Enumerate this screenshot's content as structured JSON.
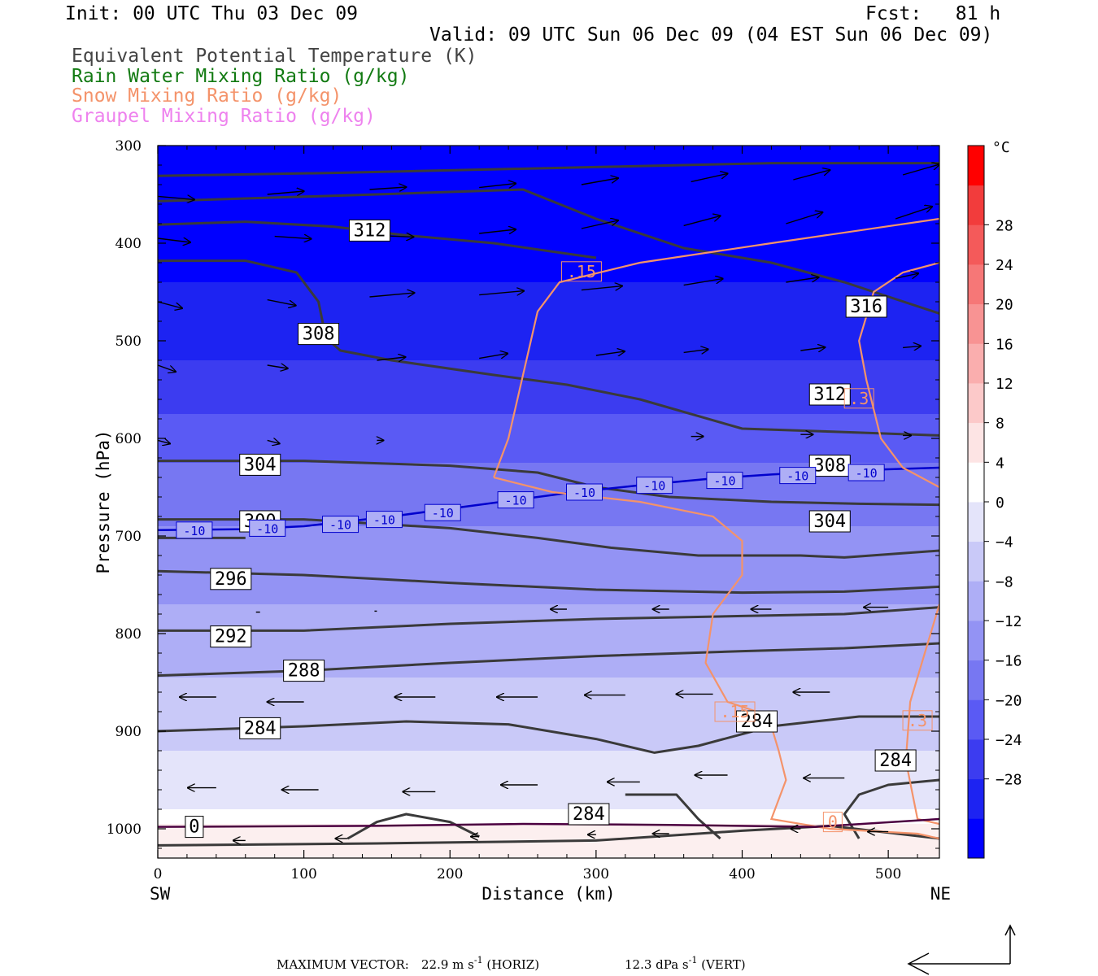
{
  "header": {
    "init": "Init: 00 UTC Thu 03 Dec 09",
    "fcst": "Fcst:   81 h",
    "valid": "Valid: 09 UTC Sun 06 Dec 09 (04 EST Sun 06 Dec 09)",
    "fields": [
      {
        "text": "Equivalent Potential Temperature (K)",
        "color": "#444444"
      },
      {
        "text": "Rain Water Mixing Ratio (g/kg)",
        "color": "#127a12"
      },
      {
        "text": "Snow Mixing Ratio (g/kg)",
        "color": "#f4936a"
      },
      {
        "text": "Graupel Mixing Ratio (g/kg)",
        "color": "#ee82ee"
      }
    ]
  },
  "chart_data": {
    "type": "cross-section contour",
    "xlabel": "Distance (km)",
    "ylabel": "Pressure (hPa)",
    "xlim": [
      0,
      535
    ],
    "ylim": [
      1030,
      300
    ],
    "x_ticks": [
      0,
      100,
      200,
      300,
      400,
      500
    ],
    "y_ticks": [
      300,
      400,
      500,
      600,
      700,
      800,
      900,
      1000
    ],
    "x_end_labels": {
      "left": "SW",
      "right": "NE"
    },
    "theta_e_contours": [
      {
        "level": 312,
        "points": [
          [
            0,
            381
          ],
          [
            60,
            378
          ],
          [
            120,
            383
          ],
          [
            170,
            392
          ],
          [
            230,
            400
          ],
          [
            300,
            415
          ]
        ]
      },
      {
        "level": 316,
        "points": [
          [
            0,
            331
          ],
          [
            120,
            328
          ],
          [
            300,
            322
          ],
          [
            420,
            318
          ],
          [
            535,
            318
          ]
        ]
      },
      {
        "level": 316,
        "points": [
          [
            0,
            357
          ],
          [
            150,
            350
          ],
          [
            250,
            345
          ],
          [
            300,
            375
          ],
          [
            360,
            405
          ],
          [
            420,
            420
          ],
          [
            470,
            440
          ],
          [
            535,
            472
          ]
        ]
      },
      {
        "level": 312,
        "points": [
          [
            0,
            418
          ],
          [
            60,
            418
          ],
          [
            95,
            430
          ],
          [
            110,
            460
          ],
          [
            115,
            497
          ],
          [
            125,
            510
          ],
          [
            160,
            520
          ],
          [
            230,
            535
          ],
          [
            280,
            545
          ],
          [
            330,
            560
          ],
          [
            400,
            590
          ],
          [
            460,
            593
          ],
          [
            535,
            597
          ]
        ]
      },
      {
        "level": 308,
        "points": [
          [
            0,
            623
          ],
          [
            100,
            623
          ],
          [
            200,
            628
          ],
          [
            260,
            635
          ],
          [
            300,
            650
          ],
          [
            350,
            660
          ],
          [
            420,
            665
          ],
          [
            480,
            667
          ],
          [
            535,
            668
          ]
        ]
      },
      {
        "level": 304,
        "points": [
          [
            0,
            683
          ],
          [
            100,
            683
          ],
          [
            200,
            692
          ],
          [
            260,
            702
          ],
          [
            310,
            712
          ],
          [
            370,
            720
          ],
          [
            440,
            720
          ],
          [
            470,
            722
          ],
          [
            535,
            715
          ]
        ]
      },
      {
        "level": 300,
        "points": [
          [
            0,
            702
          ],
          [
            60,
            702
          ]
        ]
      },
      {
        "level": 296,
        "points": [
          [
            0,
            736
          ],
          [
            100,
            740
          ],
          [
            200,
            748
          ],
          [
            300,
            755
          ],
          [
            400,
            758
          ],
          [
            470,
            757
          ],
          [
            535,
            752
          ]
        ]
      },
      {
        "level": 292,
        "points": [
          [
            0,
            797
          ],
          [
            100,
            797
          ],
          [
            200,
            790
          ],
          [
            300,
            785
          ],
          [
            400,
            782
          ],
          [
            470,
            780
          ],
          [
            535,
            773
          ]
        ]
      },
      {
        "level": 288,
        "points": [
          [
            0,
            843
          ],
          [
            100,
            838
          ],
          [
            200,
            830
          ],
          [
            300,
            823
          ],
          [
            400,
            818
          ],
          [
            470,
            815
          ],
          [
            535,
            810
          ]
        ]
      },
      {
        "level": 284,
        "points": [
          [
            0,
            900
          ],
          [
            100,
            895
          ],
          [
            170,
            890
          ],
          [
            240,
            893
          ],
          [
            300,
            908
          ],
          [
            340,
            922
          ],
          [
            370,
            915
          ],
          [
            420,
            895
          ],
          [
            480,
            885
          ],
          [
            535,
            885
          ]
        ]
      },
      {
        "level": 284,
        "points": [
          [
            130,
            1010
          ],
          [
            150,
            993
          ],
          [
            170,
            985
          ],
          [
            200,
            993
          ],
          [
            220,
            1008
          ]
        ]
      },
      {
        "level": 284,
        "points": [
          [
            320,
            965
          ],
          [
            355,
            965
          ],
          [
            370,
            990
          ],
          [
            385,
            1010
          ]
        ]
      },
      {
        "level": 284,
        "points": [
          [
            480,
            1010
          ],
          [
            470,
            985
          ],
          [
            480,
            965
          ],
          [
            500,
            955
          ],
          [
            535,
            950
          ]
        ]
      },
      {
        "level": 284,
        "points": [
          [
            0,
            1017
          ],
          [
            150,
            1015
          ],
          [
            300,
            1012
          ],
          [
            400,
            1002
          ],
          [
            460,
            997
          ],
          [
            535,
            1010
          ]
        ]
      }
    ],
    "temperature_contour": {
      "level": -10,
      "color": "#0000cd",
      "points": [
        [
          0,
          694
        ],
        [
          60,
          693
        ],
        [
          100,
          690
        ],
        [
          160,
          680
        ],
        [
          220,
          668
        ],
        [
          280,
          656
        ],
        [
          330,
          648
        ],
        [
          380,
          641
        ],
        [
          420,
          637
        ],
        [
          470,
          633
        ],
        [
          535,
          630
        ]
      ]
    },
    "snow_mixing_ratio_contours": [
      {
        "level": 0.15,
        "points": [
          [
            535,
            375
          ],
          [
            420,
            400
          ],
          [
            330,
            420
          ],
          [
            275,
            440
          ],
          [
            260,
            470
          ],
          [
            240,
            600
          ],
          [
            230,
            640
          ]
        ]
      },
      {
        "level": 0.15,
        "points": [
          [
            230,
            640
          ],
          [
            270,
            655
          ],
          [
            330,
            665
          ],
          [
            380,
            680
          ],
          [
            400,
            705
          ],
          [
            400,
            740
          ],
          [
            380,
            780
          ],
          [
            375,
            830
          ],
          [
            390,
            870
          ],
          [
            410,
            880
          ],
          [
            420,
            895
          ]
        ]
      },
      {
        "level": 0.3,
        "points": [
          [
            535,
            420
          ],
          [
            510,
            430
          ],
          [
            490,
            450
          ],
          [
            480,
            500
          ],
          [
            485,
            540
          ],
          [
            495,
            600
          ],
          [
            510,
            630
          ],
          [
            535,
            650
          ]
        ]
      },
      {
        "level": 0.15,
        "points": [
          [
            420,
            895
          ],
          [
            425,
            920
          ],
          [
            430,
            950
          ],
          [
            420,
            990
          ],
          [
            460,
            1000
          ],
          [
            520,
            1005
          ],
          [
            535,
            1010
          ]
        ]
      },
      {
        "level": 0.3,
        "points": [
          [
            535,
            770
          ],
          [
            525,
            820
          ],
          [
            515,
            870
          ],
          [
            512,
            930
          ],
          [
            520,
            990
          ],
          [
            535,
            995
          ]
        ]
      }
    ],
    "contour_labels": [
      {
        "text": "312",
        "x": 145,
        "p": 387
      },
      {
        "text": "308",
        "x": 110,
        "p": 493
      },
      {
        "text": "316",
        "x": 485,
        "p": 465
      },
      {
        "text": "312",
        "x": 460,
        "p": 555
      },
      {
        "text": "304",
        "x": 70,
        "p": 627
      },
      {
        "text": "308",
        "x": 460,
        "p": 628
      },
      {
        "text": "300",
        "x": 70,
        "p": 685
      },
      {
        "text": "304",
        "x": 460,
        "p": 685
      },
      {
        "text": "296",
        "x": 50,
        "p": 744
      },
      {
        "text": "292",
        "x": 50,
        "p": 803
      },
      {
        "text": "288",
        "x": 100,
        "p": 838
      },
      {
        "text": "284",
        "x": 70,
        "p": 897
      },
      {
        "text": "284",
        "x": 410,
        "p": 890
      },
      {
        "text": "284",
        "x": 505,
        "p": 930
      },
      {
        "text": "284",
        "x": 295,
        "p": 985
      },
      {
        "text": "0",
        "x": 25,
        "p": 998
      }
    ],
    "temperature_labels": [
      {
        "text": "-10",
        "x": 25,
        "p": 694
      },
      {
        "text": "-10",
        "x": 75,
        "p": 692
      },
      {
        "text": "-10",
        "x": 125,
        "p": 688
      },
      {
        "text": "-10",
        "x": 155,
        "p": 683
      },
      {
        "text": "-10",
        "x": 195,
        "p": 676
      },
      {
        "text": "-10",
        "x": 245,
        "p": 663
      },
      {
        "text": "-10",
        "x": 292,
        "p": 655
      },
      {
        "text": "-10",
        "x": 340,
        "p": 648
      },
      {
        "text": "-10",
        "x": 388,
        "p": 643
      },
      {
        "text": "-10",
        "x": 438,
        "p": 638
      },
      {
        "text": "-10",
        "x": 485,
        "p": 635
      }
    ],
    "snow_labels": [
      {
        "text": ".15",
        "x": 290,
        "p": 429
      },
      {
        "text": ".3",
        "x": 480,
        "p": 559
      },
      {
        "text": ".15",
        "x": 395,
        "p": 880
      },
      {
        "text": ".3",
        "x": 520,
        "p": 889
      },
      {
        "text": "0",
        "x": 462,
        "p": 993
      }
    ],
    "wind_vectors": [
      [
        0,
        352,
        45,
        4
      ],
      [
        75,
        350,
        45,
        -4
      ],
      [
        145,
        345,
        45,
        -3
      ],
      [
        220,
        343,
        45,
        -5
      ],
      [
        290,
        340,
        45,
        -8
      ],
      [
        365,
        337,
        45,
        -10
      ],
      [
        435,
        335,
        45,
        -12
      ],
      [
        510,
        330,
        45,
        -13
      ],
      [
        0,
        395,
        40,
        5
      ],
      [
        80,
        393,
        45,
        3
      ],
      [
        150,
        392,
        45,
        2
      ],
      [
        220,
        390,
        45,
        -5
      ],
      [
        290,
        385,
        45,
        -10
      ],
      [
        360,
        382,
        45,
        -12
      ],
      [
        430,
        380,
        45,
        -14
      ],
      [
        505,
        375,
        45,
        -15
      ],
      [
        0,
        460,
        30,
        8
      ],
      [
        75,
        458,
        35,
        7
      ],
      [
        145,
        455,
        55,
        -5
      ],
      [
        220,
        453,
        55,
        -5
      ],
      [
        290,
        448,
        50,
        -5
      ],
      [
        360,
        443,
        48,
        -8
      ],
      [
        430,
        440,
        40,
        -6
      ],
      [
        505,
        436,
        28,
        -6
      ],
      [
        0,
        525,
        22,
        8
      ],
      [
        75,
        525,
        25,
        4
      ],
      [
        150,
        520,
        35,
        -4
      ],
      [
        220,
        518,
        35,
        -6
      ],
      [
        300,
        515,
        35,
        -5
      ],
      [
        360,
        512,
        30,
        -4
      ],
      [
        440,
        510,
        30,
        -4
      ],
      [
        510,
        507,
        22,
        -2
      ],
      [
        0,
        602,
        15,
        4
      ],
      [
        75,
        602,
        15,
        4
      ],
      [
        150,
        602,
        8,
        0
      ],
      [
        365,
        598,
        15,
        0
      ],
      [
        440,
        596,
        15,
        0
      ],
      [
        510,
        597,
        10,
        0
      ],
      [
        70,
        778,
        -5,
        0
      ],
      [
        150,
        777,
        -3,
        0
      ],
      [
        280,
        775,
        -20,
        0
      ],
      [
        350,
        775,
        -20,
        0
      ],
      [
        420,
        775,
        -25,
        0
      ],
      [
        500,
        773,
        -30,
        0
      ],
      [
        40,
        865,
        -45,
        0
      ],
      [
        100,
        870,
        -45,
        0
      ],
      [
        190,
        865,
        -50,
        0
      ],
      [
        260,
        865,
        -50,
        0
      ],
      [
        320,
        863,
        -50,
        0
      ],
      [
        380,
        862,
        -45,
        0
      ],
      [
        460,
        860,
        -45,
        0
      ],
      [
        40,
        958,
        -35,
        0
      ],
      [
        110,
        960,
        -45,
        0
      ],
      [
        190,
        962,
        -40,
        0
      ],
      [
        260,
        955,
        -45,
        0
      ],
      [
        330,
        952,
        -40,
        0
      ],
      [
        390,
        945,
        -40,
        0
      ],
      [
        470,
        948,
        -50,
        0
      ],
      [
        60,
        1012,
        -15,
        0
      ],
      [
        130,
        1010,
        -15,
        0
      ],
      [
        220,
        1008,
        -10,
        0
      ],
      [
        300,
        1006,
        -10,
        0
      ],
      [
        350,
        1005,
        -20,
        0
      ],
      [
        440,
        1000,
        -12,
        0
      ],
      [
        500,
        1003,
        -25,
        0
      ]
    ],
    "shading": {
      "variable": "temperature",
      "unit": "°C",
      "levels": [
        -32,
        -28,
        -24,
        -20,
        -16,
        -12,
        -8,
        -4,
        0,
        4,
        8,
        12,
        16,
        20,
        24,
        28,
        32
      ],
      "colors": [
        "#0000ff",
        "#1d23f2",
        "#3c3cf0",
        "#5a5af4",
        "#7777f2",
        "#9393f4",
        "#aeaef6",
        "#c9c9f8",
        "#e4e4fa",
        "#ffffff",
        "#fde4e4",
        "#fcc9c9",
        "#faaeae",
        "#f89393",
        "#f67777",
        "#f45a5a",
        "#f23c3c",
        "#ff0000"
      ],
      "colorbar_ticks": [
        28,
        24,
        20,
        16,
        12,
        8,
        4,
        0,
        -4,
        -8,
        -12,
        -16,
        -20,
        -24,
        -28
      ],
      "unit_label": "°C"
    },
    "max_vector": {
      "label": "MAXIMUM VECTOR:",
      "horiz": "22.9 m s",
      "horiz_unit": "(HORIZ)",
      "vert": "12.3 dPa s",
      "vert_unit": "(VERT)",
      "exponent": "-1"
    }
  }
}
